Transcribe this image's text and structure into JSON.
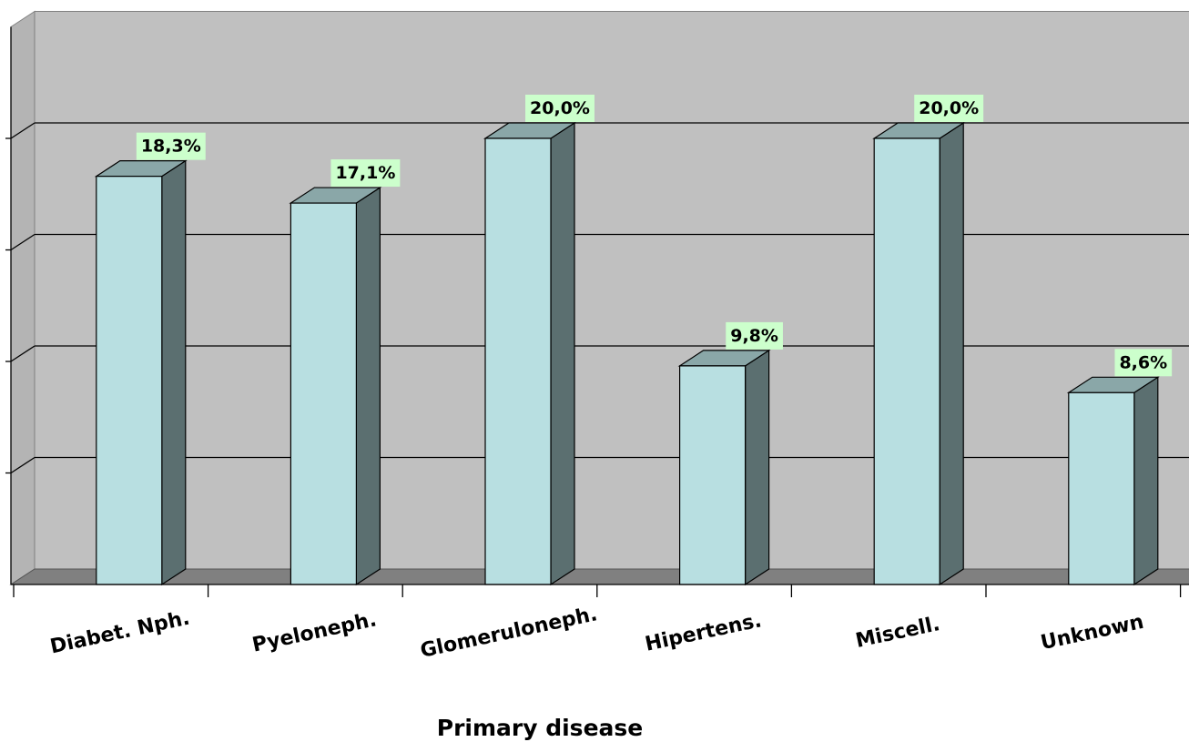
{
  "chart_data": {
    "type": "bar",
    "title": "",
    "xlabel": "Primary disease",
    "ylabel": "",
    "categories": [
      "Diabet. Nph.",
      "Pyeloneph.",
      "Glomeruloneph.",
      "Hipertens.",
      "Miscell.",
      "Unknown"
    ],
    "values": [
      18.3,
      17.1,
      20.0,
      9.8,
      20.0,
      8.6
    ],
    "data_labels": [
      "18,3%",
      "17,1%",
      "20,0%",
      "9,8%",
      "20,0%",
      "8,6%"
    ],
    "ylim": [
      0,
      25
    ],
    "y_gridline_step": 5,
    "grid": true,
    "three_d": true,
    "legend": "none"
  },
  "colors": {
    "plot_background": "#c0c0c0",
    "floor": "#808080",
    "bar_front": "#b8dfe1",
    "bar_top": "#8aa7a8",
    "bar_side": "#5b6f70",
    "data_label_background": "#ccffcc",
    "gridline": "#000000"
  }
}
